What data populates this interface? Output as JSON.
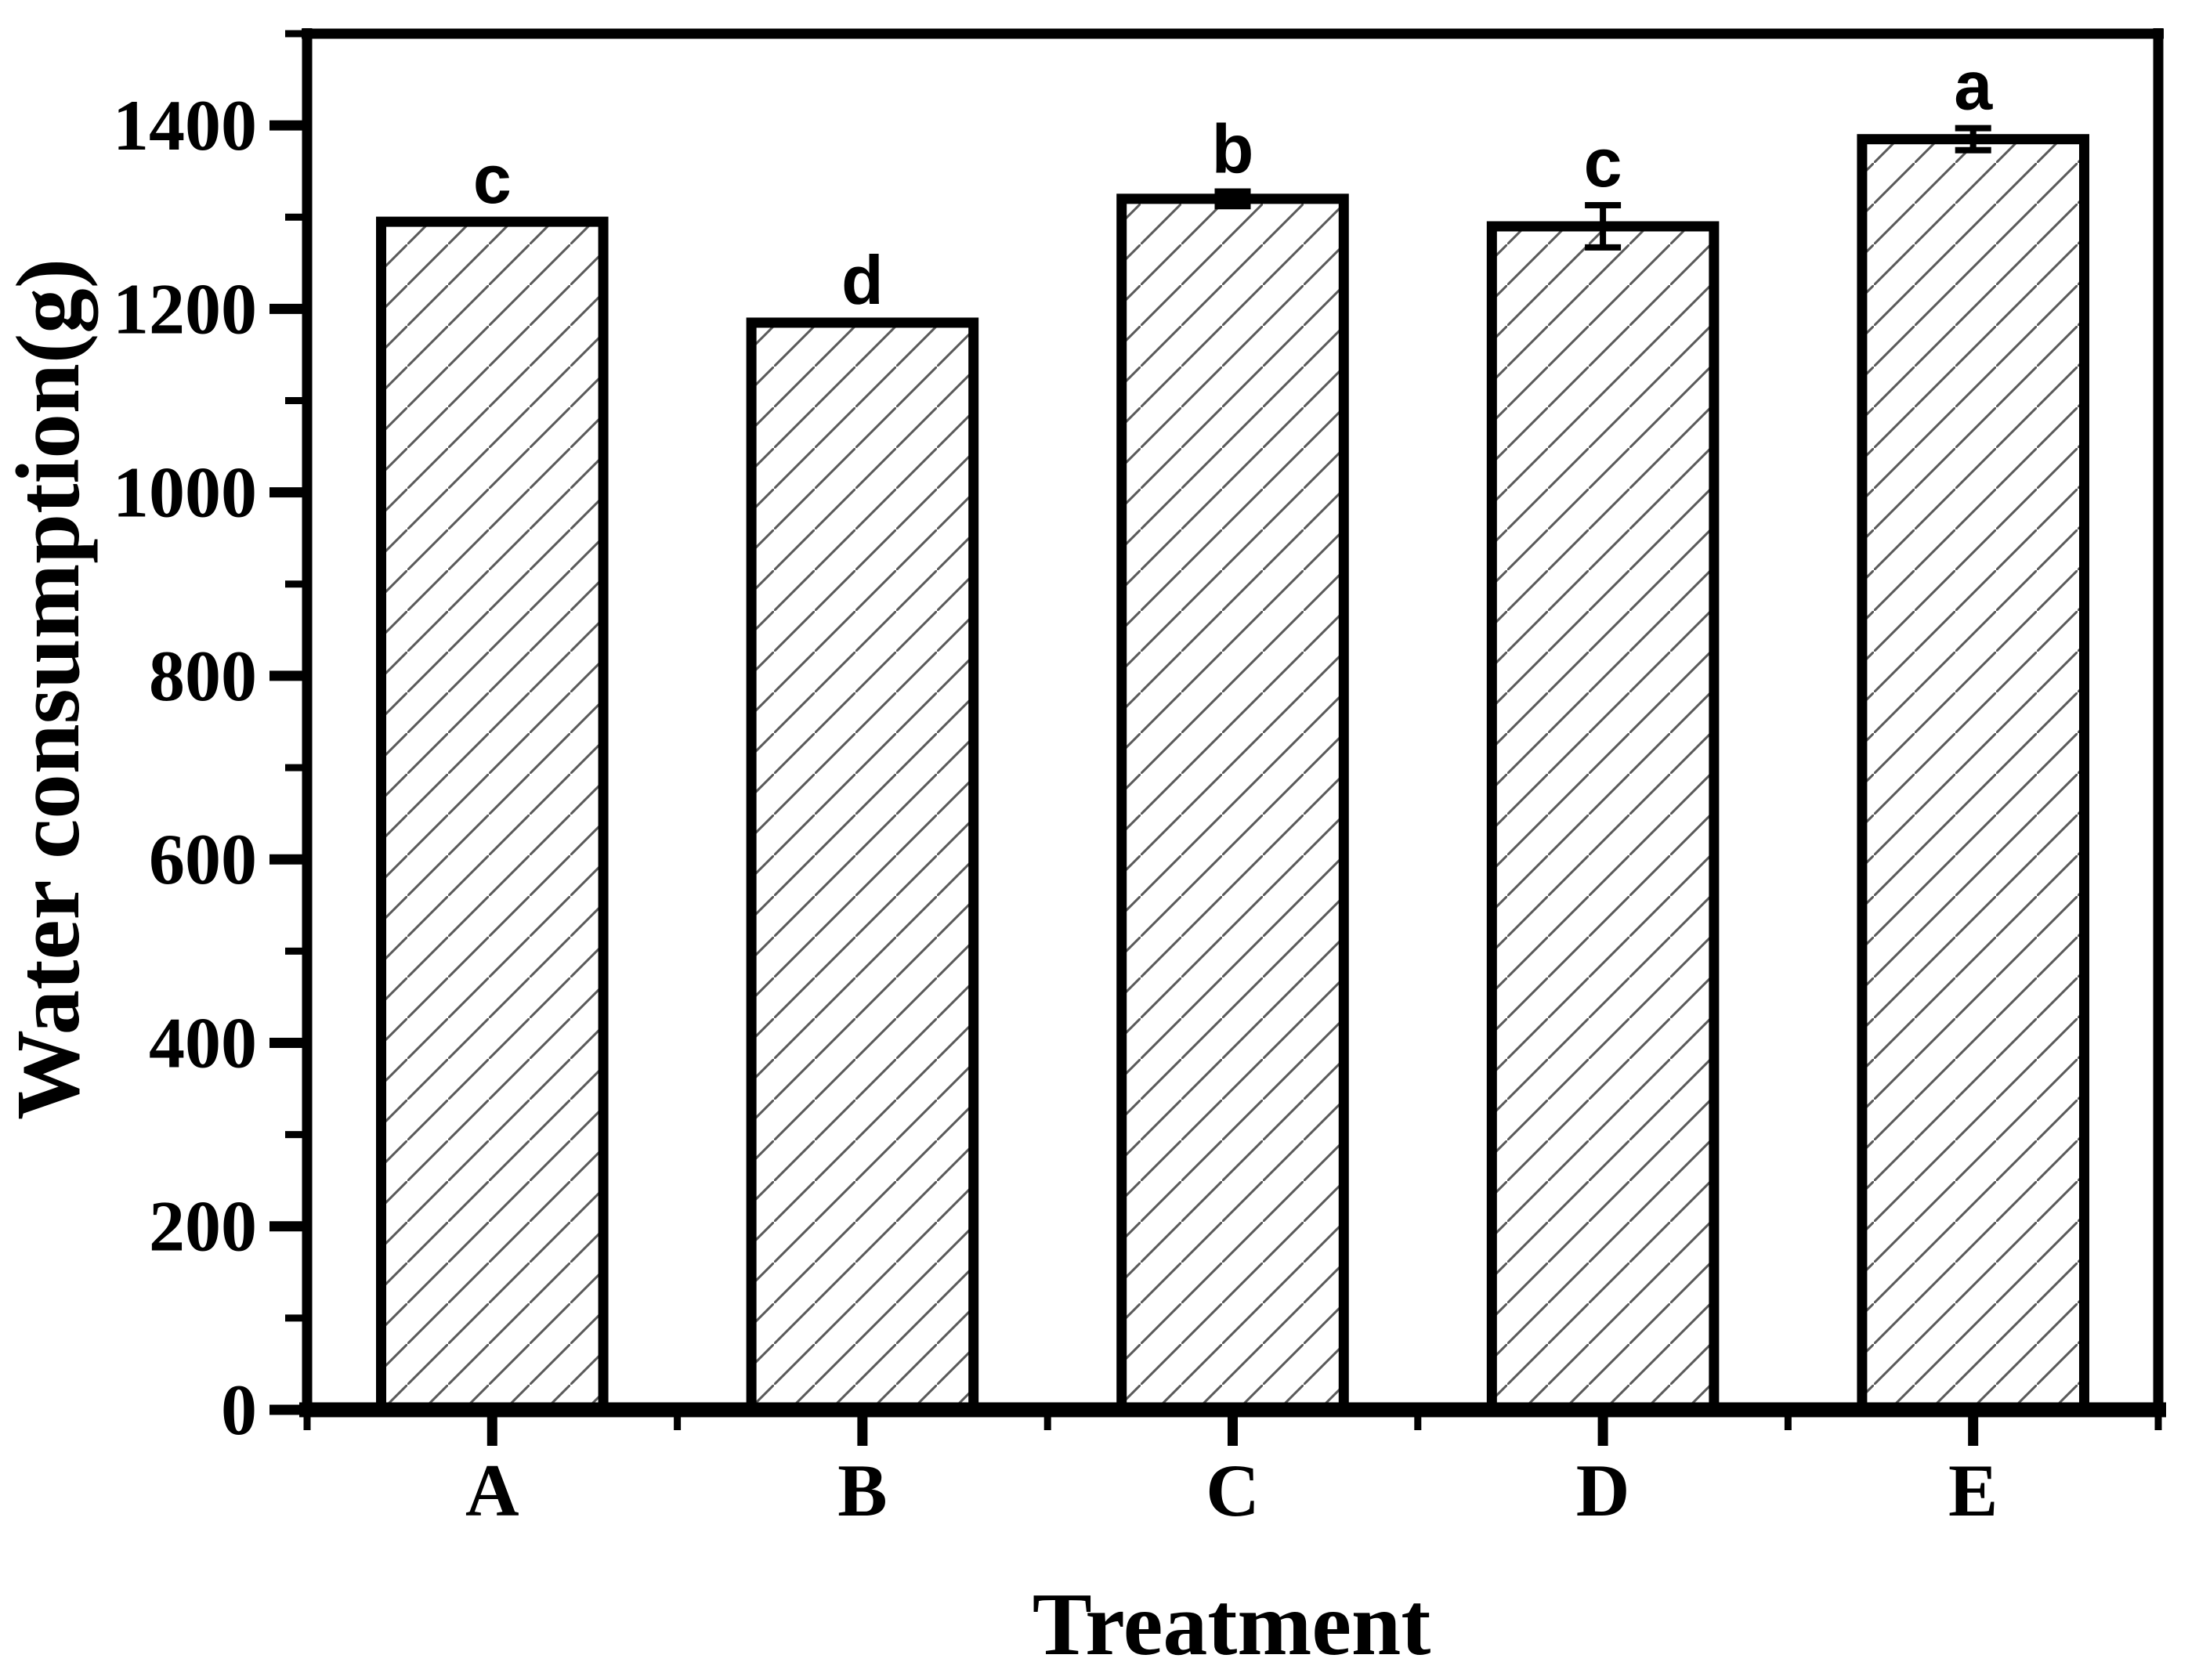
{
  "chart_data": {
    "type": "bar",
    "title": "",
    "xlabel": "Treatment",
    "ylabel": "Water consumption(g)",
    "categories": [
      "A",
      "B",
      "C",
      "D",
      "E"
    ],
    "series": [
      {
        "name": "Water consumption",
        "values": [
          1295,
          1185,
          1320,
          1290,
          1385
        ],
        "errors": [
          0,
          0,
          8,
          23,
          12
        ],
        "sig_letters": [
          "c",
          "d",
          "b",
          "c",
          "a"
        ]
      }
    ],
    "ylim": [
      0,
      1500
    ],
    "yticks": [
      0,
      200,
      400,
      600,
      800,
      1000,
      1200,
      1400
    ],
    "y_minor_step": 100,
    "x_minor_ticks_between_categories": true,
    "grid": false,
    "legend_position": "none",
    "bar_style": {
      "fill": "diagonal-hatch",
      "hatch_color": "#5a5a5a",
      "edge_color": "#000000",
      "bar_width_fraction": 0.6
    },
    "colors": {
      "background": "#ffffff",
      "axis": "#000000",
      "text": "#000000"
    }
  }
}
